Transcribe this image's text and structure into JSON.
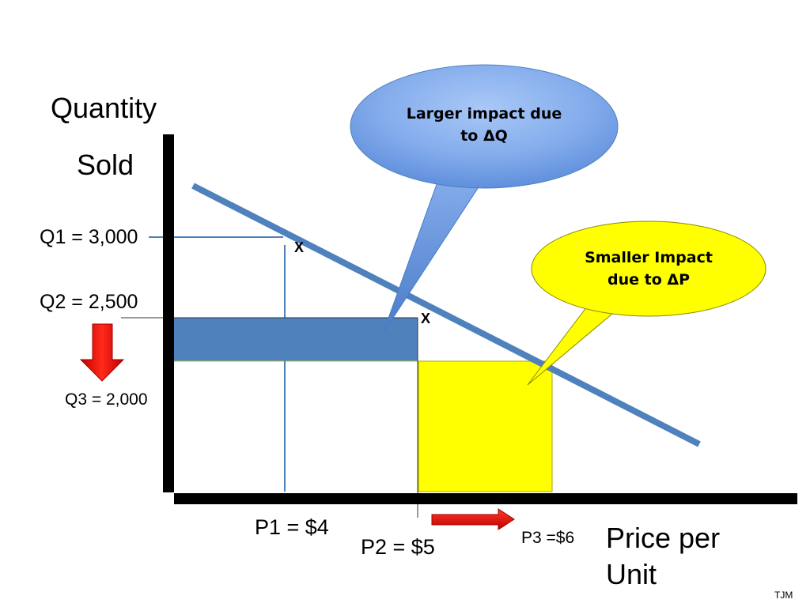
{
  "axes": {
    "y_title_line1": "Quantity",
    "y_title_line2": "Sold",
    "x_title_line1": "Price per",
    "x_title_line2": "Unit"
  },
  "quantity_labels": {
    "q1": "Q1 = 3,000",
    "q2": "Q2 = 2,500",
    "q3": "Q3 = 2,000"
  },
  "price_labels": {
    "p1": "P1 = $4",
    "p2": "P2 = $5",
    "p3": "P3 =$6"
  },
  "point_markers": {
    "first": "X",
    "second": "X"
  },
  "callouts": {
    "larger": {
      "line1": "Larger impact due",
      "line2": "to ΔQ",
      "color": "#8fb4f0"
    },
    "smaller": {
      "line1": "Smaller Impact",
      "line2": "due to ΔP",
      "color": "#ffff00"
    }
  },
  "colors": {
    "demand_line": "#4f81bd",
    "revenue_loss_rect": "#4f81bd",
    "revenue_gain_rect": "#ffff00",
    "arrows": "#e8140c",
    "axes": "#000000"
  },
  "footer": {
    "initials": "TJM"
  }
}
